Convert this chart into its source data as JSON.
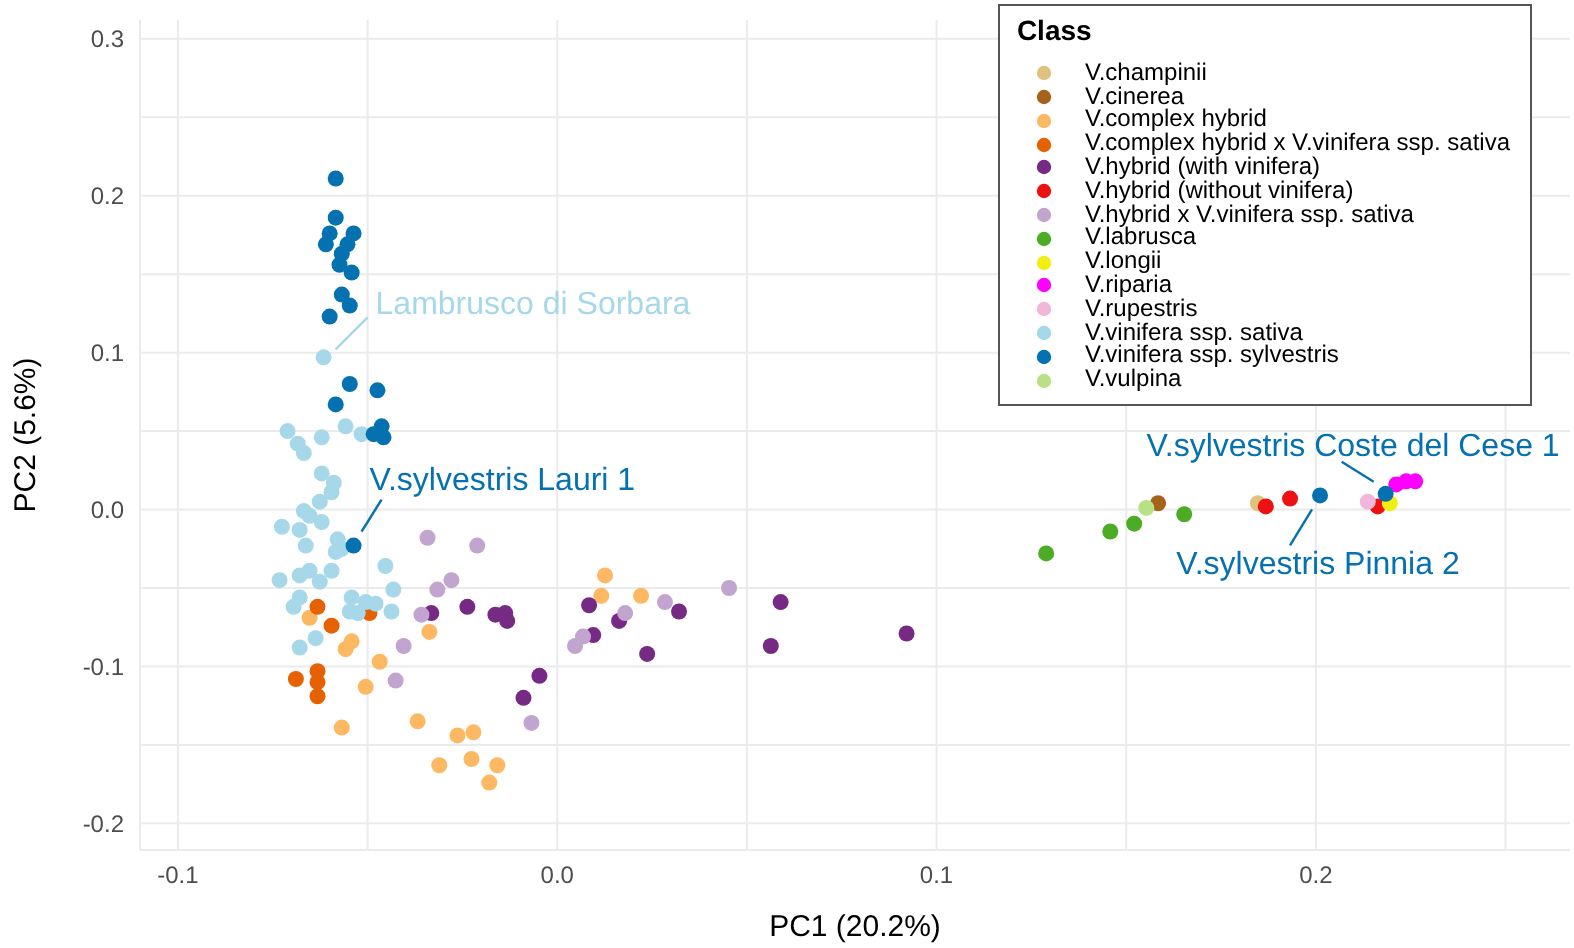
{
  "chart_data": {
    "type": "scatter",
    "xlabel": "PC1 (20.2%)",
    "ylabel": "PC2 (5.6%)",
    "legend_title": "Class",
    "legend": "top right",
    "grid": true,
    "marker": "circle",
    "xlim": [
      -0.11,
      0.267
    ],
    "ylim": [
      -0.217,
      0.312
    ],
    "xticks": [
      -0.1,
      {
        "value": 0,
        "label": "0.0"
      },
      0.1,
      0.2
    ],
    "yticks": [
      -0.2,
      -0.1,
      {
        "value": 0,
        "label": "0.0"
      },
      0.1,
      0.2,
      0.3
    ],
    "series": [
      {
        "name": "V.champinii",
        "color": "#dfc27d",
        "x": [
          0.1847
        ],
        "values": [
          0.004
        ]
      },
      {
        "name": "V.cinerea",
        "color": "#a6611a",
        "x": [
          0.1584
        ],
        "values": [
          0.004
        ]
      },
      {
        "name": "V.complex hybrid",
        "color": "#fdb863",
        "x": [
          -0.0653,
          -0.0542,
          -0.0558,
          -0.0468,
          -0.0337,
          -0.0505,
          -0.0368,
          -0.0568,
          -0.0311,
          -0.0263,
          -0.0221,
          -0.0226,
          -0.0158,
          -0.0179,
          0.0126,
          0.0116,
          0.0221
        ],
        "values": [
          -0.069,
          -0.084,
          -0.089,
          -0.097,
          -0.078,
          -0.113,
          -0.135,
          -0.139,
          -0.163,
          -0.144,
          -0.142,
          -0.159,
          -0.163,
          -0.174,
          -0.042,
          -0.055,
          -0.055
        ]
      },
      {
        "name": "V.complex hybrid x V.vinifera ssp. sativa",
        "color": "#e66101",
        "x": [
          -0.0632,
          -0.0595,
          -0.0495,
          -0.0689,
          -0.0632,
          -0.0632,
          -0.0632
        ],
        "values": [
          -0.062,
          -0.074,
          -0.066,
          -0.108,
          -0.103,
          -0.11,
          -0.119
        ]
      },
      {
        "name": "V.hybrid (with vinifera)",
        "color": "#762a83",
        "x": [
          -0.0332,
          -0.0237,
          -0.0163,
          -0.0137,
          -0.0132,
          -0.0047,
          -0.0089,
          0.0084,
          0.0095,
          0.0163,
          0.0237,
          0.0321,
          0.0563,
          0.0589,
          0.0921
        ],
        "values": [
          -0.066,
          -0.062,
          -0.067,
          -0.066,
          -0.071,
          -0.106,
          -0.12,
          -0.061,
          -0.08,
          -0.071,
          -0.092,
          -0.065,
          -0.087,
          -0.059,
          -0.079
        ]
      },
      {
        "name": "V.hybrid (without vinifera)",
        "color": "#ee1111",
        "x": [
          0.1868,
          0.1932,
          0.2163
        ],
        "values": [
          0.002,
          0.007,
          0.002
        ]
      },
      {
        "name": "V.hybrid x V.vinifera ssp. sativa",
        "color": "#c2a5cf",
        "x": [
          -0.0342,
          -0.0316,
          -0.0358,
          -0.0405,
          -0.0426,
          -0.0211,
          -0.0279,
          -0.0068,
          0.0047,
          0.0068,
          0.0179,
          0.0284,
          0.0453
        ],
        "values": [
          -0.018,
          -0.051,
          -0.067,
          -0.087,
          -0.109,
          -0.023,
          -0.045,
          -0.136,
          -0.087,
          -0.081,
          -0.066,
          -0.059,
          -0.05
        ]
      },
      {
        "name": "V.labrusca",
        "color": "#4dac26",
        "x": [
          0.1289,
          0.1458,
          0.1521,
          0.1653
        ],
        "values": [
          -0.028,
          -0.014,
          -0.009,
          -0.003
        ]
      },
      {
        "name": "V.longii",
        "color": "#f2ee10",
        "x": [
          0.2195
        ],
        "values": [
          0.004
        ]
      },
      {
        "name": "V.riparia",
        "color": "#ff00ff",
        "x": [
          0.2212,
          0.2238,
          0.2262
        ],
        "values": [
          0.016,
          0.018,
          0.018
        ]
      },
      {
        "name": "V.rupestris",
        "color": "#f1b6da",
        "x": [
          0.2137
        ],
        "values": [
          0.005
        ]
      },
      {
        "name": "V.vinifera ssp. sativa",
        "color": "#a6d8ea",
        "x": [
          -0.0616,
          -0.0711,
          -0.0684,
          -0.0668,
          -0.0621,
          -0.0558,
          -0.0516,
          -0.0621,
          -0.0589,
          -0.0595,
          -0.0626,
          -0.0668,
          -0.0653,
          -0.0621,
          -0.0726,
          -0.0679,
          -0.0663,
          -0.0579,
          -0.0584,
          -0.0568,
          -0.0453,
          -0.0732,
          -0.0679,
          -0.0653,
          -0.0626,
          -0.0595,
          -0.0432,
          -0.0679,
          -0.0695,
          -0.0542,
          -0.0505,
          -0.0479,
          -0.0547,
          -0.0526,
          -0.0437,
          -0.0637,
          -0.0679
        ],
        "values": [
          0.097,
          0.05,
          0.042,
          0.036,
          0.046,
          0.053,
          0.048,
          0.023,
          0.017,
          0.011,
          0.005,
          -0.001,
          -0.004,
          -0.008,
          -0.011,
          -0.013,
          -0.023,
          -0.019,
          -0.027,
          -0.025,
          -0.036,
          -0.045,
          -0.042,
          -0.039,
          -0.046,
          -0.039,
          -0.051,
          -0.056,
          -0.062,
          -0.056,
          -0.059,
          -0.06,
          -0.065,
          -0.066,
          -0.065,
          -0.082,
          -0.088
        ]
      },
      {
        "name": "V.vinifera ssp. sylvestris",
        "color": "#0571b0",
        "x": [
          -0.0584,
          -0.0584,
          -0.06,
          -0.061,
          -0.0537,
          -0.0553,
          -0.0568,
          -0.0574,
          -0.0542,
          -0.0568,
          -0.0547,
          -0.06,
          -0.0547,
          -0.0474,
          -0.0584,
          -0.0463,
          -0.0484,
          -0.0458,
          -0.0537,
          0.2184,
          0.2011
        ],
        "values": [
          0.211,
          0.186,
          0.176,
          0.169,
          0.176,
          0.169,
          0.163,
          0.156,
          0.151,
          0.137,
          0.13,
          0.123,
          0.08,
          0.076,
          0.067,
          0.053,
          0.048,
          0.046,
          -0.023,
          0.01,
          0.009
        ]
      },
      {
        "name": "V.vulpina",
        "color": "#b8e186",
        "x": [
          0.1553
        ],
        "values": [
          0.001
        ]
      }
    ],
    "annotations": [
      {
        "text": "Lambrusco di Sorbara",
        "x": -0.0616,
        "y": 0.097
      },
      {
        "text": "V.sylvestris Lauri 1",
        "x": -0.0537,
        "y": -0.023
      },
      {
        "text": "V.sylvestris Coste del Cese 1",
        "x": 0.2184,
        "y": 0.01
      },
      {
        "text": "V.sylvestris Pinnia 2",
        "x": 0.2011,
        "y": 0.009
      }
    ]
  }
}
